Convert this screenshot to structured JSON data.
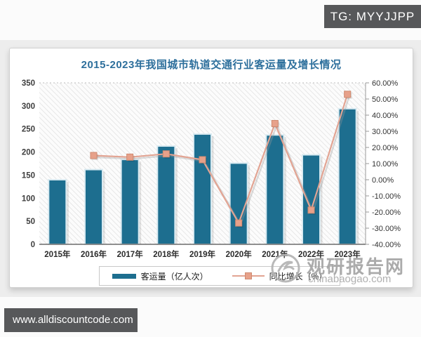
{
  "page": {
    "tg_badge": "TG: MYYJJPP",
    "bottom_bar": "www.alldiscountcode.com",
    "watermark": {
      "brand": "观研报告网",
      "domain": "chinabaogao.com"
    }
  },
  "chart_data": {
    "type": "bar",
    "subtype": "combo bar+line, secondary percent axis",
    "title": "2015-2023年我国城市轨道交通行业客运量及增长情况",
    "categories": [
      "2015年",
      "2016年",
      "2017年",
      "2018年",
      "2019年",
      "2020年",
      "2021年",
      "2022年",
      "2023年"
    ],
    "series": [
      {
        "name": "客运量（亿人次）",
        "type": "bar",
        "axis": "left",
        "color": "#1d6e8f",
        "values": [
          140,
          162,
          184,
          213,
          239,
          176,
          237,
          194,
          294
        ]
      },
      {
        "name": "同比增长（%）",
        "type": "line",
        "axis": "right",
        "color": "#e2a493",
        "marker_color": "#e7a18a",
        "values": [
          null,
          15.0,
          14.0,
          16.0,
          12.4,
          -26.8,
          34.8,
          -18.8,
          52.9
        ]
      }
    ],
    "left_axis": {
      "min": 0,
      "max": 350,
      "step": 50,
      "tick_labels": [
        "0",
        "50",
        "100",
        "150",
        "200",
        "250",
        "300",
        "350"
      ]
    },
    "right_axis": {
      "min": -40,
      "max": 60,
      "step": 10,
      "tick_labels": [
        "-40.00%",
        "-30.00%",
        "-20.00%",
        "-10.00%",
        "0.00%",
        "10.00%",
        "20.00%",
        "30.00%",
        "40.00%",
        "50.00%",
        "60.00%"
      ]
    },
    "legend_position": "bottom",
    "plot_background": "diagonal-hatch",
    "grid": "top dotted line only"
  },
  "colors": {
    "bar": "#1d6e8f",
    "bar_outline": "#d9eaf1",
    "line": "#e2a493",
    "marker": "#e7a18a",
    "marker_border": "#cf8a70",
    "title": "#2d6f9c",
    "badge_bg": "#57585a",
    "watermark_gray": "#a3a3a3",
    "axis_line": "#6b6b6b"
  }
}
